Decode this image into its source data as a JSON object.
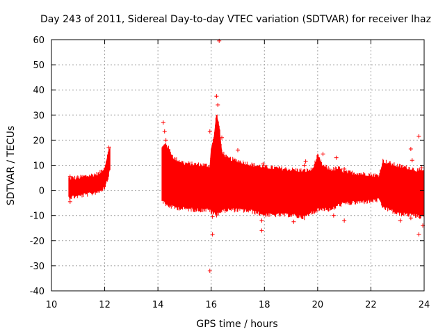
{
  "chart_data": {
    "type": "scatter",
    "title": "Day 243 of 2011, Sidereal Day-to-day VTEC variation (SDTVAR) for receiver lhaz",
    "xlabel": "GPS time / hours",
    "ylabel": "SDTVAR / TECUs",
    "xlim": [
      10,
      24
    ],
    "ylim": [
      -40,
      60
    ],
    "grid": true,
    "marker": "+",
    "color": "#ff0000",
    "x_ticks": [
      "10",
      "12",
      "14",
      "16",
      "18",
      "20",
      "22",
      "24"
    ],
    "y_ticks": [
      "-40",
      "-30",
      "-20",
      "-10",
      "0",
      "10",
      "20",
      "30",
      "40",
      "50",
      "60"
    ],
    "envelope_series": [
      {
        "name": "segment-1",
        "x": [
          10.65,
          11.0,
          11.5,
          11.8,
          12.0,
          12.1,
          12.2
        ],
        "upper": [
          4.0,
          4.3,
          5.2,
          6.0,
          8.5,
          13.0,
          17.0
        ],
        "lower": [
          -2.0,
          -1.5,
          -0.5,
          0.5,
          2.0,
          5.0,
          9.0
        ]
      },
      {
        "name": "segment-2",
        "x": [
          14.15,
          14.3,
          14.6,
          15.0,
          15.5,
          15.95,
          16.0,
          16.1,
          16.2,
          16.3,
          16.4,
          16.6,
          17.0,
          17.5,
          18.0,
          18.5,
          19.0,
          19.5,
          19.8,
          20.0,
          20.2,
          20.5,
          20.8,
          21.0,
          21.5,
          22.0,
          22.3,
          22.45,
          22.7,
          23.0,
          23.5,
          23.8,
          24.0
        ],
        "upper": [
          16.0,
          18.0,
          12.0,
          10.0,
          9.5,
          9.0,
          16.0,
          20.0,
          30.0,
          25.0,
          15.0,
          12.0,
          11.0,
          9.5,
          8.5,
          8.0,
          7.5,
          7.0,
          7.5,
          13.0,
          9.0,
          7.5,
          8.0,
          6.5,
          6.0,
          5.5,
          5.0,
          11.0,
          10.0,
          9.0,
          8.0,
          7.0,
          7.0
        ],
        "lower": [
          -3.0,
          -5.0,
          -6.0,
          -6.5,
          -7.0,
          -7.0,
          -8.0,
          -8.5,
          -9.0,
          -8.0,
          -7.5,
          -7.0,
          -7.0,
          -7.5,
          -9.0,
          -9.0,
          -9.0,
          -10.0,
          -8.0,
          -7.0,
          -6.5,
          -7.0,
          -5.0,
          -4.5,
          -4.0,
          -3.5,
          -3.0,
          -6.0,
          -7.0,
          -8.5,
          -9.0,
          -9.5,
          -10.0
        ]
      }
    ],
    "scatter_points": [
      {
        "x": 10.7,
        "y": 5.5
      },
      {
        "x": 10.7,
        "y": -4.5
      },
      {
        "x": 12.15,
        "y": 17.0
      },
      {
        "x": 14.2,
        "y": 27.0
      },
      {
        "x": 14.25,
        "y": 23.5
      },
      {
        "x": 14.3,
        "y": 20.0
      },
      {
        "x": 15.95,
        "y": 23.5
      },
      {
        "x": 15.95,
        "y": -32.0
      },
      {
        "x": 16.05,
        "y": -10.5
      },
      {
        "x": 16.05,
        "y": -17.5
      },
      {
        "x": 16.2,
        "y": 37.5
      },
      {
        "x": 16.25,
        "y": 34.0
      },
      {
        "x": 16.3,
        "y": 59.5
      },
      {
        "x": 16.3,
        "y": -7.5
      },
      {
        "x": 16.4,
        "y": 21.0
      },
      {
        "x": 17.0,
        "y": 16.0
      },
      {
        "x": 17.9,
        "y": -12.0
      },
      {
        "x": 17.9,
        "y": -16.0
      },
      {
        "x": 17.95,
        "y": 10.5
      },
      {
        "x": 19.1,
        "y": -12.5
      },
      {
        "x": 19.5,
        "y": 10.0
      },
      {
        "x": 19.55,
        "y": 11.5
      },
      {
        "x": 20.2,
        "y": 14.5
      },
      {
        "x": 20.6,
        "y": -10.0
      },
      {
        "x": 20.7,
        "y": 13.0
      },
      {
        "x": 21.0,
        "y": -12.0
      },
      {
        "x": 21.0,
        "y": 8.5
      },
      {
        "x": 22.5,
        "y": 10.0
      },
      {
        "x": 23.1,
        "y": -12.0
      },
      {
        "x": 23.5,
        "y": 16.5
      },
      {
        "x": 23.55,
        "y": 12.0
      },
      {
        "x": 23.5,
        "y": -11.0
      },
      {
        "x": 23.8,
        "y": 21.5
      },
      {
        "x": 23.8,
        "y": -17.5
      },
      {
        "x": 23.9,
        "y": 9.0
      },
      {
        "x": 23.95,
        "y": -14.0
      }
    ]
  }
}
